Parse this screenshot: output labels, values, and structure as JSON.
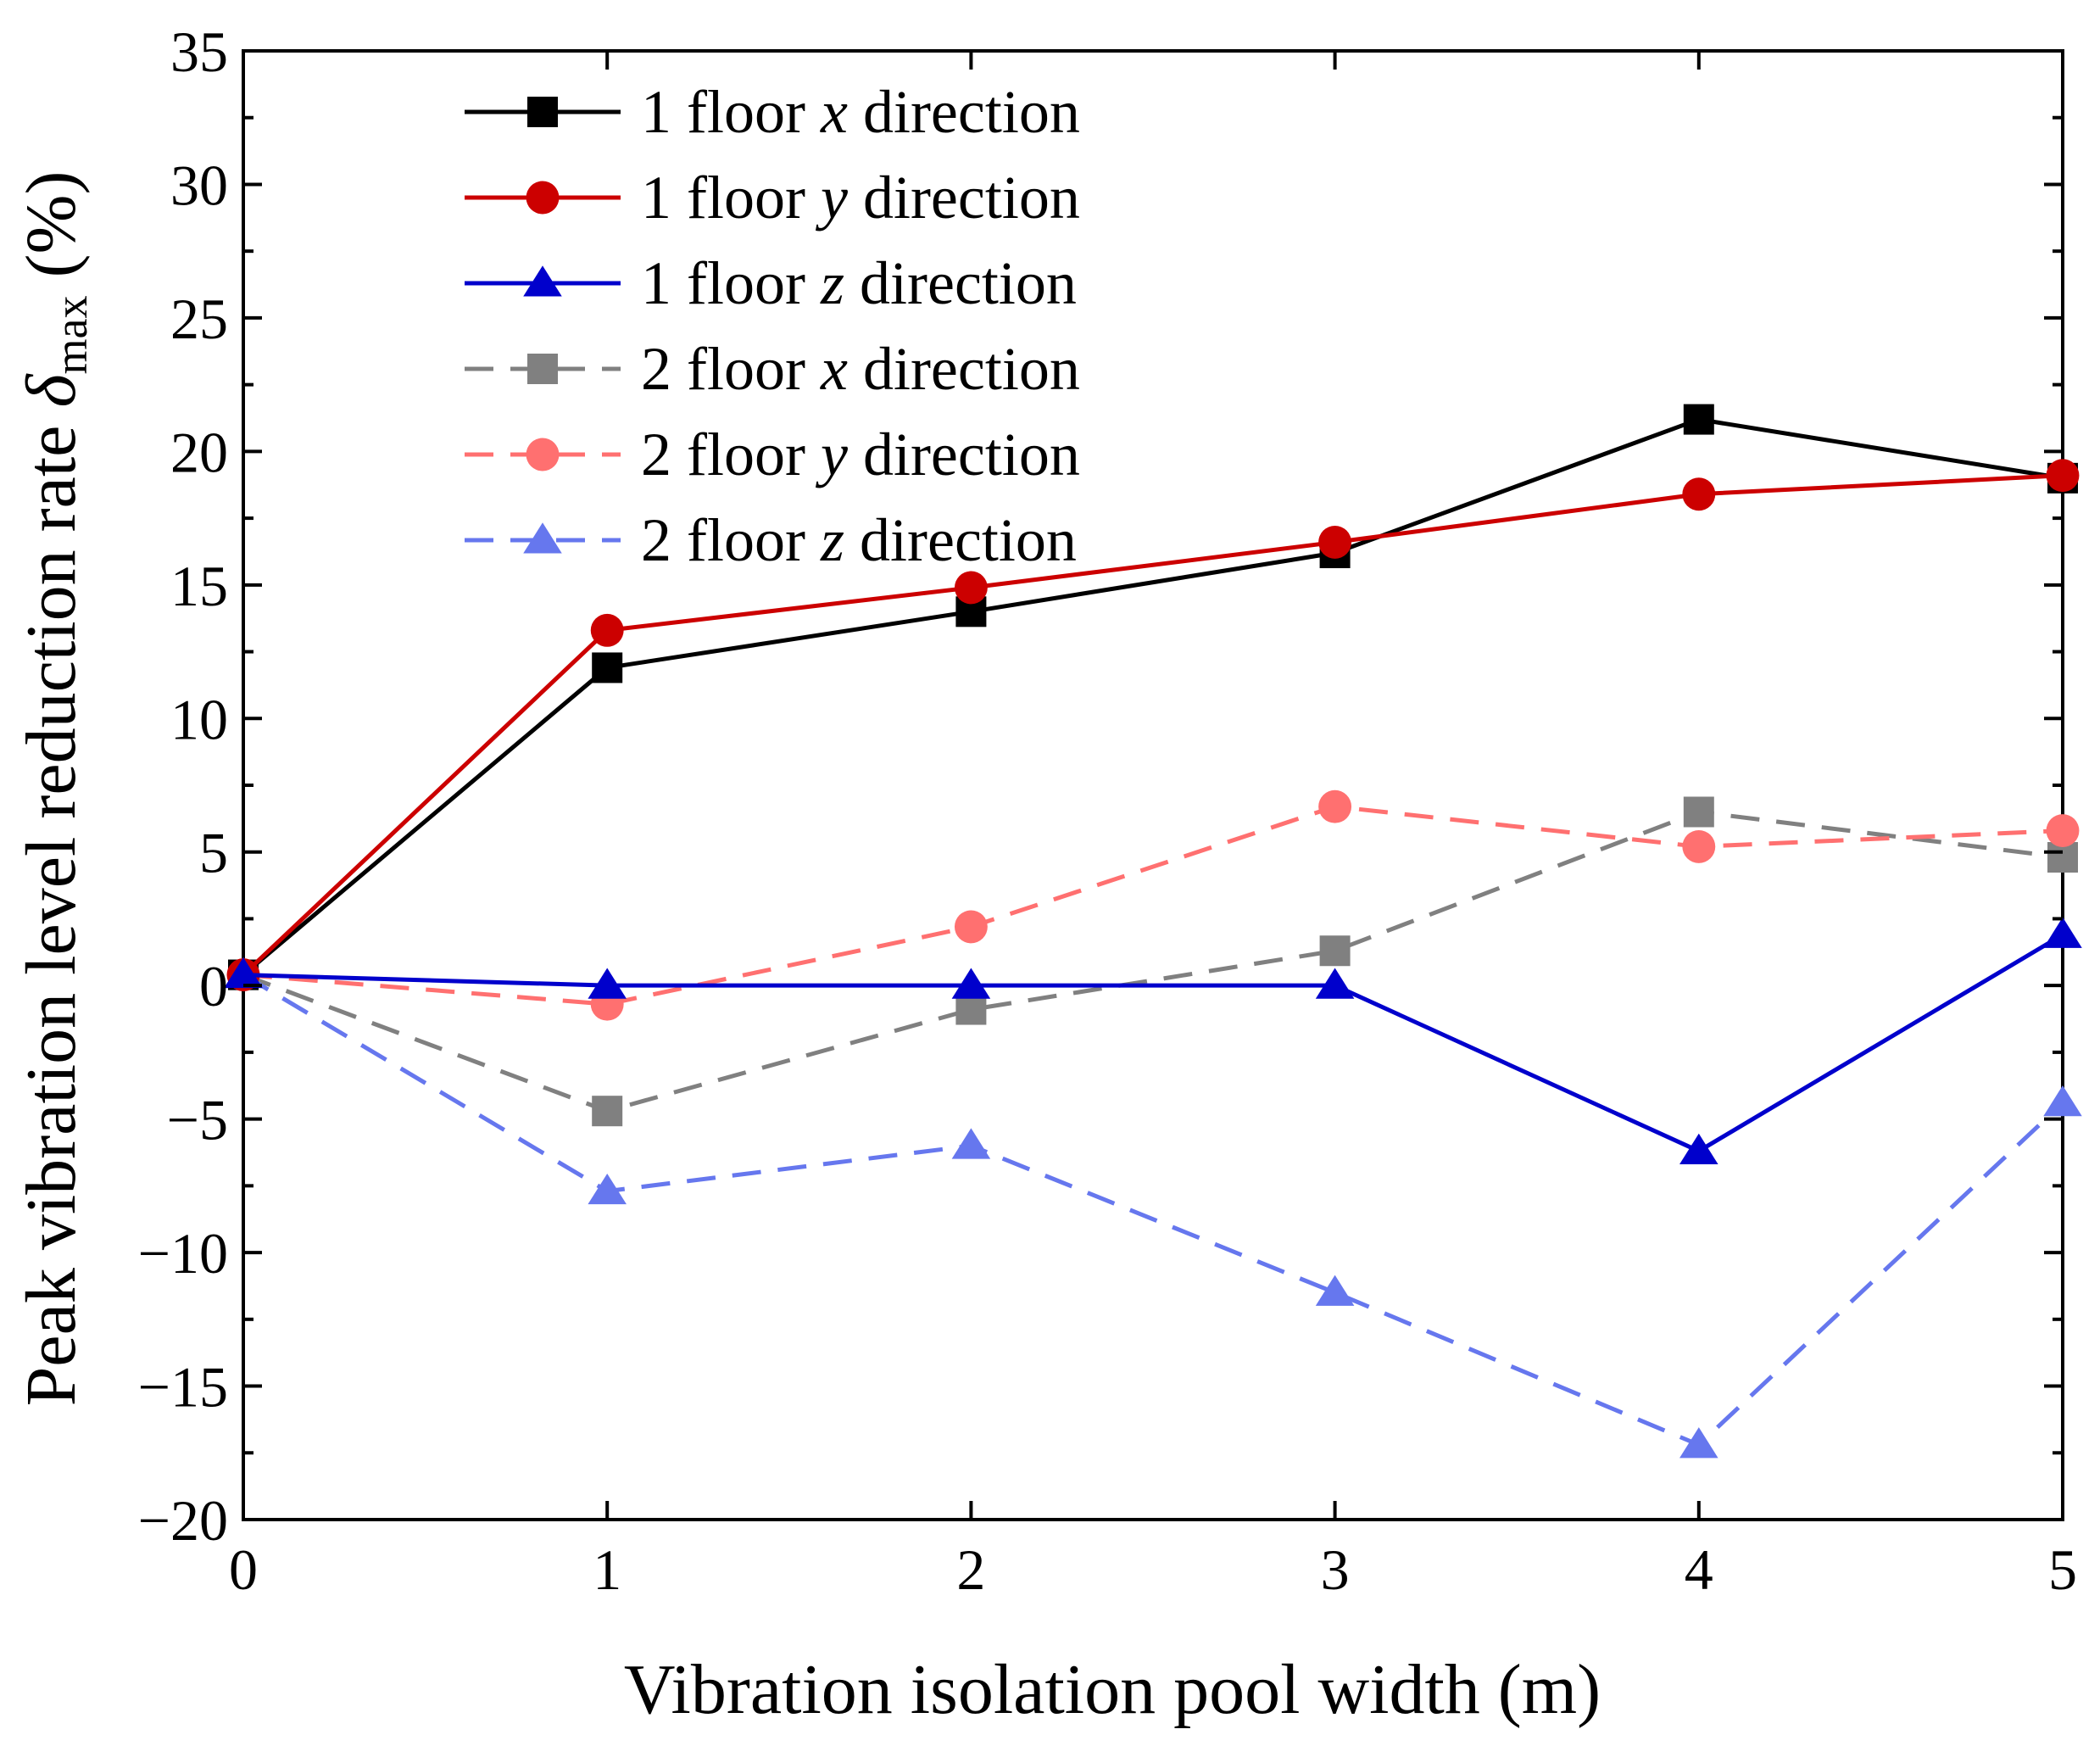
{
  "chart_data": {
    "type": "line",
    "title": "",
    "xlabel": "Vibration isolation pool width (m)",
    "ylabel": {
      "prefix": "Peak vibration level reduction rate ",
      "symbol": "δ",
      "subscript": "max",
      "suffix": " (%)"
    },
    "xlim": [
      0,
      5
    ],
    "ylim": [
      -20,
      35
    ],
    "xticks": [
      0,
      1,
      2,
      3,
      4,
      5
    ],
    "yticks": [
      -20,
      -15,
      -10,
      -5,
      0,
      5,
      10,
      15,
      20,
      25,
      30,
      35
    ],
    "ytick_labels": [
      "−20",
      "−15",
      "−10",
      "−5",
      "0",
      "5",
      "10",
      "15",
      "20",
      "25",
      "30",
      "35"
    ],
    "grid": false,
    "legend_position": "top-left",
    "series": [
      {
        "name": "1 floor x direction",
        "label_pre": "1 floor ",
        "label_var": "x",
        "label_post": " direction",
        "color": "#000000",
        "dashed": false,
        "marker": "square",
        "x": [
          0,
          1,
          2,
          3,
          4,
          5
        ],
        "values": [
          0.4,
          11.9,
          14.0,
          16.2,
          21.2,
          19.0
        ]
      },
      {
        "name": "1 floor y direction",
        "label_pre": "1 floor ",
        "label_var": "y",
        "label_post": " direction",
        "color": "#cc0000",
        "dashed": false,
        "marker": "circle",
        "x": [
          0,
          1,
          2,
          3,
          4,
          5
        ],
        "values": [
          0.4,
          13.3,
          14.9,
          16.6,
          18.4,
          19.1
        ]
      },
      {
        "name": "1 floor z direction",
        "label_pre": "1 floor ",
        "label_var": "z",
        "label_post": " direction",
        "color": "#0000cc",
        "dashed": false,
        "marker": "triangle",
        "x": [
          0,
          1,
          2,
          3,
          4,
          5
        ],
        "values": [
          0.4,
          0.0,
          0.0,
          0.0,
          -6.2,
          1.9
        ]
      },
      {
        "name": "2 floor x direction",
        "label_pre": "2 floor ",
        "label_var": "x",
        "label_post": " direction",
        "color": "#808080",
        "dashed": true,
        "marker": "square",
        "x": [
          0,
          1,
          2,
          3,
          4,
          5
        ],
        "values": [
          0.4,
          -4.7,
          -0.9,
          1.3,
          6.5,
          4.8
        ]
      },
      {
        "name": "2 floor y direction",
        "label_pre": "2 floor ",
        "label_var": "y",
        "label_post": " direction",
        "color": "#ff7070",
        "dashed": true,
        "marker": "circle",
        "x": [
          0,
          1,
          2,
          3,
          4,
          5
        ],
        "values": [
          0.4,
          -0.7,
          2.2,
          6.7,
          5.2,
          5.8
        ]
      },
      {
        "name": "2 floor z direction",
        "label_pre": "2 floor ",
        "label_var": "z",
        "label_post": " direction",
        "color": "#6677ee",
        "dashed": true,
        "marker": "triangle",
        "x": [
          0,
          1,
          2,
          3,
          4,
          5
        ],
        "values": [
          0.4,
          -7.7,
          -6.0,
          -11.5,
          -17.2,
          -4.4
        ]
      }
    ]
  }
}
